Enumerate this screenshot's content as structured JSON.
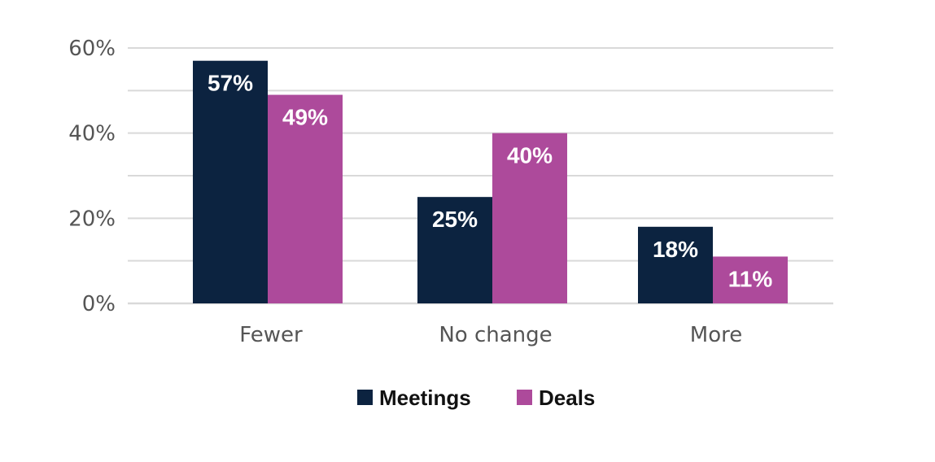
{
  "chart_data": {
    "type": "bar",
    "categories": [
      "Fewer",
      "No change",
      "More"
    ],
    "series": [
      {
        "name": "Meetings",
        "values": [
          57,
          25,
          18
        ],
        "labels": [
          "57%",
          "25%",
          "18%"
        ],
        "color": "#0c2340"
      },
      {
        "name": "Deals",
        "values": [
          49,
          40,
          11
        ],
        "labels": [
          "49%",
          "40%",
          "11%"
        ],
        "color": "#ad4a9b"
      }
    ],
    "ylim": [
      0,
      60
    ],
    "yticks": [
      {
        "value": 0,
        "label": "0%"
      },
      {
        "value": 20,
        "label": "20%"
      },
      {
        "value": 40,
        "label": "40%"
      },
      {
        "value": 60,
        "label": "60%"
      }
    ],
    "minor_gridlines": [
      10,
      30,
      50
    ],
    "grid": true,
    "grid_color": "#d9d9d9",
    "legend_position": "bottom-center",
    "title": "",
    "xlabel": "",
    "ylabel": ""
  }
}
